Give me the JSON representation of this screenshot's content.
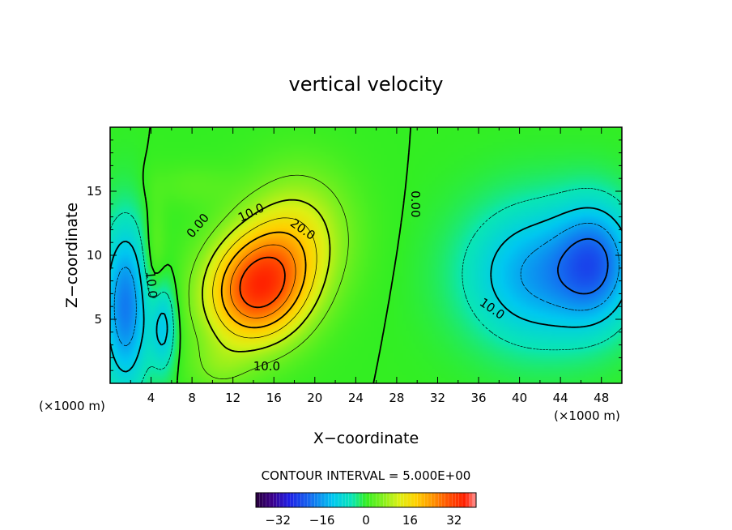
{
  "chart_data": {
    "type": "heatmap",
    "title": "vertical velocity",
    "xlabel": "X−coordinate",
    "ylabel": "Z−coordinate",
    "x_unit_left": "(×1000 m)",
    "x_unit_right": "(×1000 m)",
    "xlim": [
      0,
      50
    ],
    "ylim": [
      0,
      20
    ],
    "x_ticks": [
      4,
      8,
      12,
      16,
      20,
      24,
      28,
      32,
      36,
      40,
      44,
      48
    ],
    "y_ticks": [
      5,
      10,
      15
    ],
    "contour_interval_text": "CONTOUR INTERVAL = 5.000E+00",
    "contour_interval": 5,
    "colorbar": {
      "min": -40,
      "max": 40,
      "ticks": [
        -32,
        -16,
        0,
        16,
        32
      ],
      "tick_labels": [
        "−32",
        "−16",
        "0",
        "16",
        "32"
      ]
    },
    "contour_labels": [
      {
        "text": "10.0",
        "x": 13.8,
        "y": 13.3,
        "angle": -25
      },
      {
        "text": "20.0",
        "x": 18.8,
        "y": 12.0,
        "angle": 35
      },
      {
        "text": "0.00",
        "x": 8.6,
        "y": 12.3,
        "angle": -50
      },
      {
        "text": "0.00",
        "x": 29.8,
        "y": 14.0,
        "angle": 90
      },
      {
        "text": "10.0",
        "x": 15.3,
        "y": 1.3,
        "angle": 0
      },
      {
        "text": "10.0",
        "x": 4.0,
        "y": 7.7,
        "angle": 85
      },
      {
        "text": "10.0",
        "x": 37.3,
        "y": 5.8,
        "angle": 35
      }
    ],
    "features": [
      {
        "name": "updraft",
        "x": 14.5,
        "z": 7.5,
        "peak": 33
      },
      {
        "name": "downdraft",
        "x": 42,
        "z": 8.5,
        "peak": -22
      },
      {
        "name": "downdraft",
        "x": 47.5,
        "z": 9.5,
        "peak": -22
      },
      {
        "name": "downdraft",
        "x": 1.5,
        "z": 6,
        "peak": -19
      }
    ]
  },
  "colors": {
    "zero": "#33ee22",
    "max": "#ff2a00",
    "min": "#1a50e0"
  }
}
